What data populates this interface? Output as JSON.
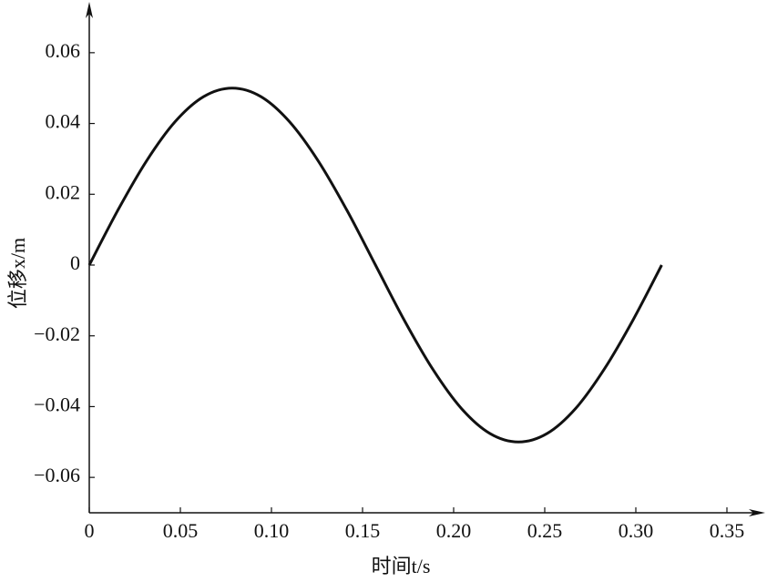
{
  "chart_data": {
    "type": "line",
    "xlabel": "时间t/s",
    "ylabel": "位移x/m",
    "x": [
      0,
      0.0157,
      0.0314,
      0.0471,
      0.0628,
      0.0785,
      0.0942,
      0.1099,
      0.1257,
      0.1414,
      0.1571,
      0.1728,
      0.1885,
      0.2042,
      0.2199,
      0.2356,
      0.2513,
      0.267,
      0.2827,
      0.2985,
      0.3142
    ],
    "series": [
      {
        "color": "#111111",
        "values": [
          0,
          0.0155,
          0.0294,
          0.0405,
          0.0476,
          0.05,
          0.0476,
          0.0405,
          0.0294,
          0.0155,
          0,
          -0.0155,
          -0.0294,
          -0.0405,
          -0.0476,
          -0.05,
          -0.0476,
          -0.0405,
          -0.0294,
          -0.0155,
          0
        ]
      }
    ],
    "xlim": [
      0,
      0.37
    ],
    "ylim": [
      -0.07,
      0.07
    ],
    "xticks": [
      0,
      0.05,
      {
        "value": 0.1,
        "label": "0.10"
      },
      0.15,
      {
        "value": 0.2,
        "label": "0.20"
      },
      0.25,
      {
        "value": 0.3,
        "label": "0.30"
      },
      0.35
    ],
    "yticks": [
      0.06,
      0.04,
      0.02,
      0,
      {
        "value": -0.02,
        "label": "−0.02"
      },
      {
        "value": -0.04,
        "label": "−0.04"
      },
      {
        "value": -0.06,
        "label": "−0.06"
      }
    ],
    "grid": false
  }
}
